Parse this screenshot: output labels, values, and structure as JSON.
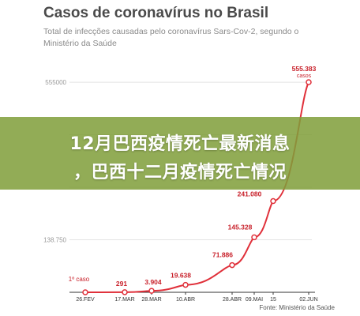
{
  "title": "Casos de coronavírus no Brasil",
  "subtitle": "Total de infecções causadas pelo coronavírus Sars-Cov-2, segundo o Ministério da Saúde",
  "banner": {
    "line1": "12月巴西疫情死亡最新消息",
    "line2": "，巴西十二月疫情死亡情况"
  },
  "source": "Fonte: Ministério da Saúde",
  "colors": {
    "line": "#e0303a",
    "labels": "#c8202a",
    "banner": "#809e3a"
  },
  "chart_data": {
    "type": "line",
    "title": "Casos de coronavírus no Brasil",
    "x_ticks": [
      "26.FEV",
      "17.MAR",
      "28.MAR",
      "10.ABR",
      "28.ABR",
      "09.MAI",
      "15",
      "02.JUN"
    ],
    "y_ticks": [
      {
        "value": 555000,
        "label": "555000"
      },
      {
        "value": 138750,
        "label": "138.750"
      }
    ],
    "ylim": [
      0,
      555383
    ],
    "grid": true,
    "series": [
      {
        "points": [
          {
            "x": "26.FEV",
            "y": 1
          },
          {
            "x": "17.MAR",
            "y": 291
          },
          {
            "x": "28.MAR",
            "y": 3904
          },
          {
            "x": "10.ABR",
            "y": 19638
          },
          {
            "x": "28.ABR",
            "y": 71886
          },
          {
            "x": "09.MAI",
            "y": 145328
          },
          {
            "x": "15",
            "y": 241080
          },
          {
            "x": "02.JUN",
            "y": 555383
          }
        ]
      }
    ],
    "annotations": [
      {
        "x": "26.FEV",
        "label": "1º caso"
      },
      {
        "x": "17.MAR",
        "label": "291"
      },
      {
        "x": "28.MAR",
        "label": "3.904"
      },
      {
        "x": "10.ABR",
        "label": "19.638"
      },
      {
        "x": "28.ABR",
        "label": "71.886"
      },
      {
        "x": "09.MAI",
        "label": "145.328"
      },
      {
        "x": "15",
        "label": "241.080"
      },
      {
        "x": "02.JUN",
        "label": "555.383",
        "sublabel": "casos"
      }
    ]
  }
}
